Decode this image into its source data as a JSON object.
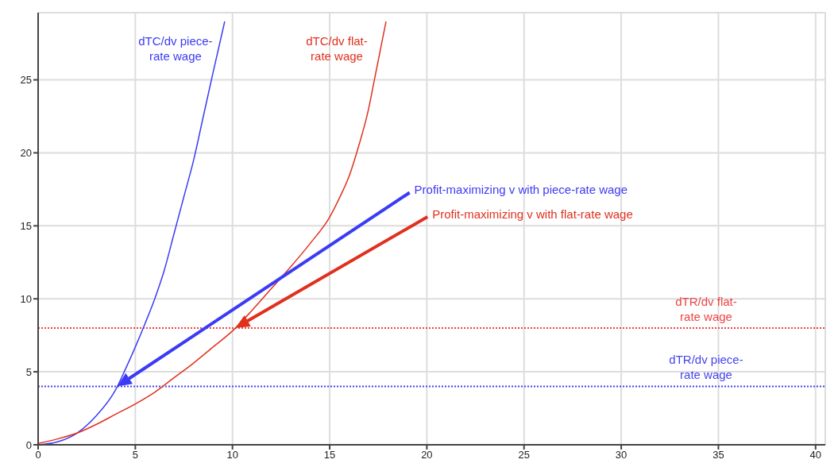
{
  "chart_data": {
    "type": "line",
    "xlim": [
      0,
      40.5
    ],
    "ylim": [
      0,
      29.6
    ],
    "xticks": [
      0,
      5,
      10,
      15,
      20,
      25,
      30,
      35,
      40
    ],
    "yticks": [
      0,
      5,
      10,
      15,
      20,
      25
    ],
    "grid": true,
    "legend": false,
    "marker": "none",
    "line_style": "solid",
    "series": [
      {
        "name": "dTC/dv piece-rate wage",
        "color": "#3b3bf5",
        "x": [
          0,
          1,
          2,
          3,
          4,
          4.5,
          5,
          5.5,
          6,
          6.5,
          7,
          7.5,
          8,
          8.5,
          9,
          9.6
        ],
        "values": [
          0,
          0.2,
          0.8,
          2,
          3.8,
          5.2,
          6.7,
          8.3,
          10,
          12,
          14.5,
          17,
          19.5,
          22.5,
          25.5,
          29
        ]
      },
      {
        "name": "dTC/dv flat-rate wage",
        "color": "#e0301e",
        "x": [
          0,
          1,
          2,
          3,
          4,
          5,
          6,
          7,
          8,
          9,
          10,
          11,
          12,
          13,
          14,
          15,
          15.5,
          16,
          16.5,
          17,
          17.3,
          17.6,
          17.9
        ],
        "values": [
          0.1,
          0.4,
          0.8,
          1.4,
          2.1,
          2.8,
          3.6,
          4.6,
          5.6,
          6.7,
          7.8,
          9.2,
          10.7,
          12.2,
          13.8,
          15.6,
          16.9,
          18.4,
          20.5,
          23,
          25,
          27,
          29
        ]
      }
    ],
    "ref_lines": [
      {
        "axis": "y",
        "value": 4,
        "label": "dTR/dv piece-rate wage",
        "color": "#4444ee",
        "line_style": "dotted"
      },
      {
        "axis": "y",
        "value": 8,
        "label": "dTR/dv flat-rate wage",
        "color": "#ee4444",
        "line_style": "dotted"
      }
    ],
    "annotations": [
      "Profit-maximizing v with piece-rate wage",
      "Profit-maximizing v with flat-rate wage"
    ]
  }
}
